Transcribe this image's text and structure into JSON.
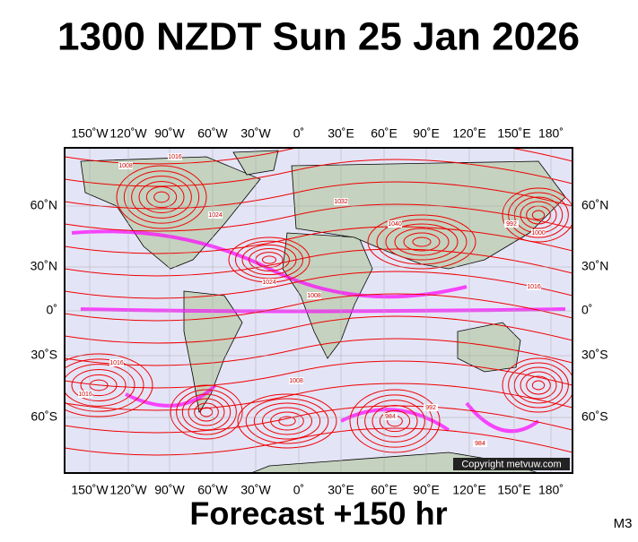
{
  "title": "1300 NZDT Sun 25 Jan 2026",
  "footer": "Forecast +150 hr",
  "code": "M3",
  "copyright": "Copyright metvuw.com",
  "lon_labels": [
    "150˚W",
    "120˚W",
    "90˚W",
    "60˚W",
    "30˚W",
    "0˚",
    "30˚E",
    "60˚E",
    "90˚E",
    "120˚E",
    "150˚E",
    "180˚"
  ],
  "lat_labels": [
    "60˚N",
    "30˚N",
    "0˚",
    "30˚S",
    "60˚S"
  ],
  "isobar_labels": [
    "1008",
    "1016",
    "1024",
    "1032",
    "1040",
    "1008",
    "1016",
    "992",
    "984",
    "1000",
    "1016",
    "1024",
    "1008",
    "992",
    "984",
    "1016"
  ]
}
